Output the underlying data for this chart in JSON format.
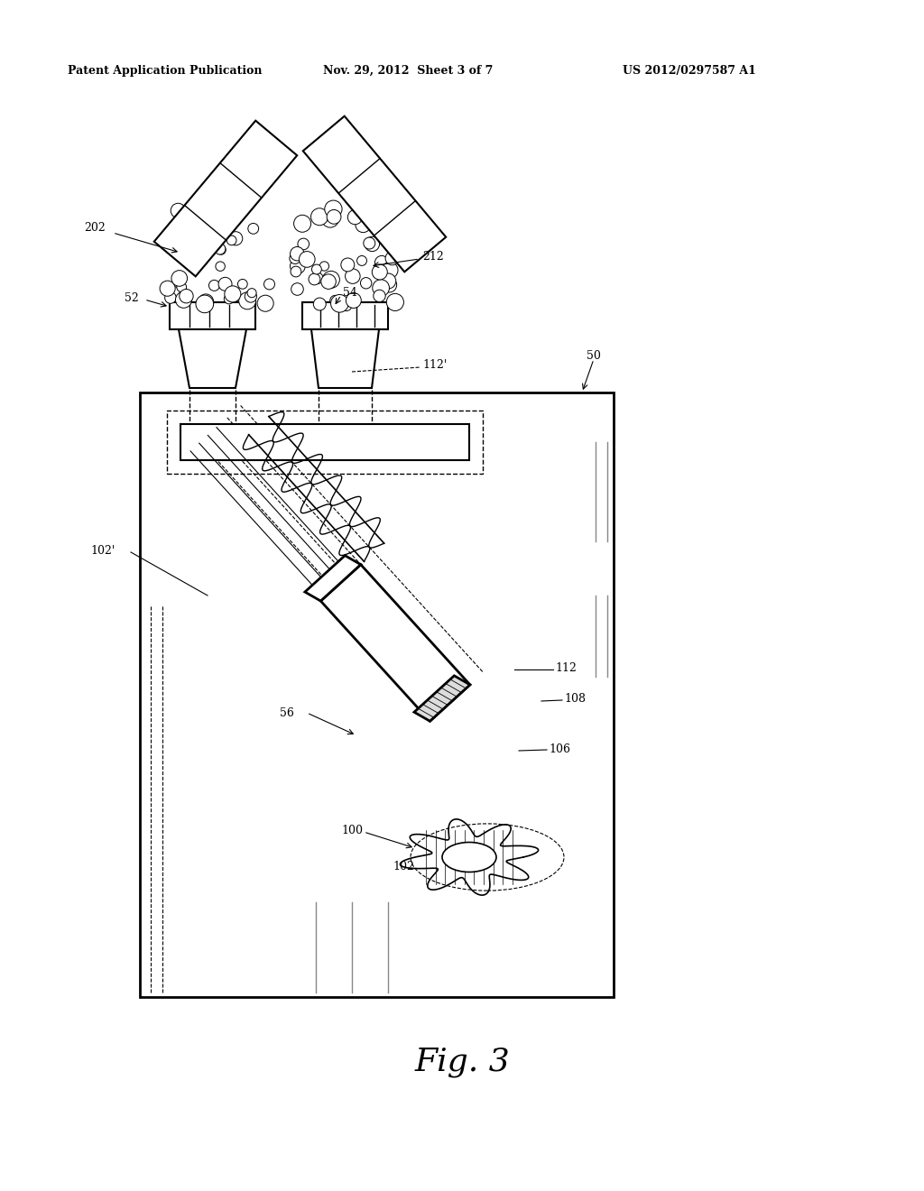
{
  "bg_color": "#ffffff",
  "header_text": "Patent Application Publication",
  "header_date": "Nov. 29, 2012  Sheet 3 of 7",
  "header_patent": "US 2012/0297587 A1",
  "caption": "Fig. 3",
  "fig_width": 10.24,
  "fig_height": 13.2,
  "dpi": 100
}
